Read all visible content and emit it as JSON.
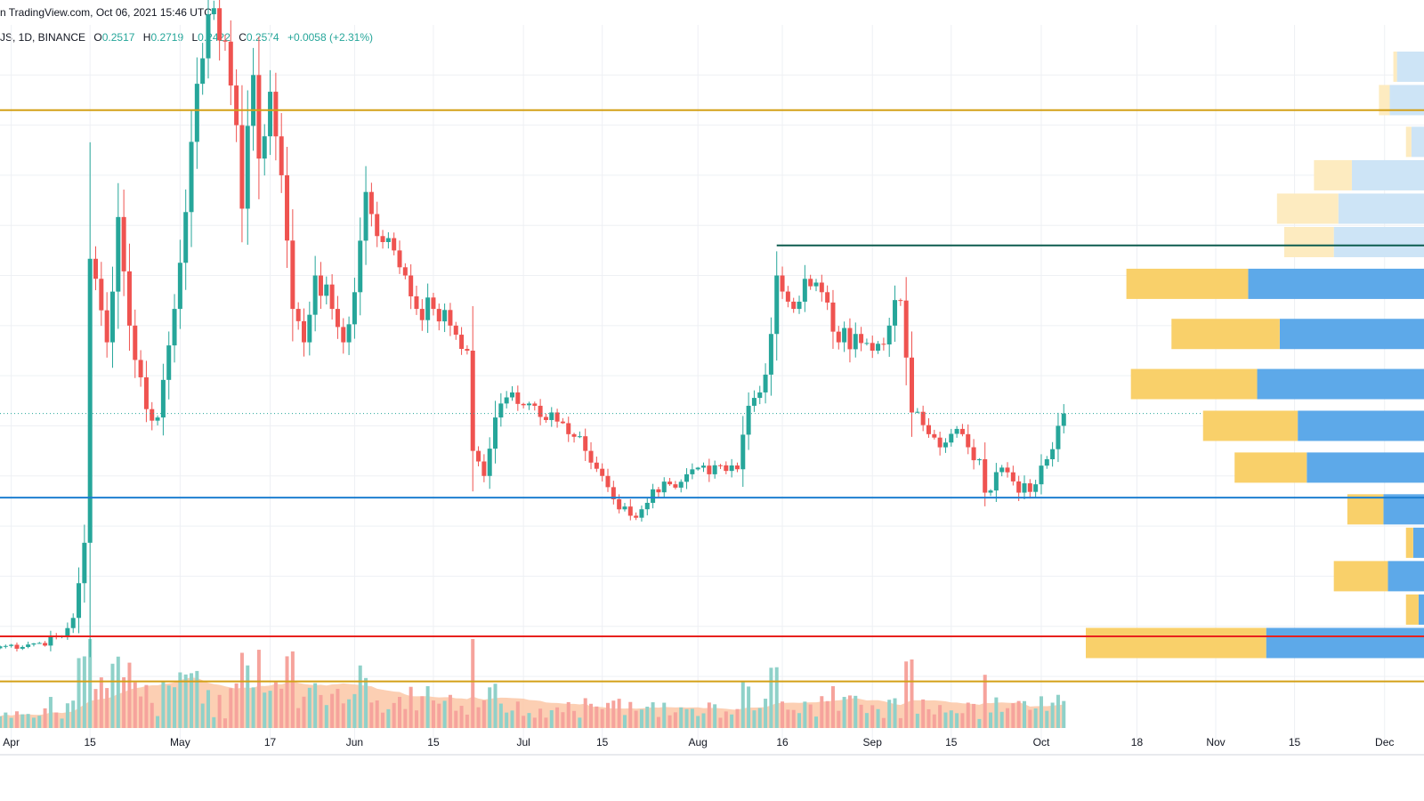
{
  "header": {
    "site": "n TradingView.com, Oct 06, 2021 15:46 UTC",
    "symbol": "JS, 1D, BINANCE",
    "open_label": "O",
    "open": "0.2517",
    "high_label": "H",
    "high": "0.2719",
    "low_label": "L",
    "low": "0.2422",
    "close_label": "C",
    "close": "0.2574",
    "change": "+0.0058 (+2.31%)"
  },
  "colors": {
    "up": "#26a69a",
    "down": "#ef5350",
    "volume_up": "#8fd1c9",
    "volume_down": "#f6a39c",
    "volume_ma": "#fbc7a6",
    "level_gold": "#d4a017",
    "level_blue": "#1e7fd0",
    "level_red": "#e8211e",
    "level_dark": "#0d5c4f",
    "vp_up": "#5da9e9",
    "vp_down": "#f9d06a",
    "vp_up_light": "#cde4f6",
    "vp_down_light": "#fdebc0",
    "grid": "#eef0f4"
  },
  "chart_data": {
    "type": "candlestick",
    "x_tick_labels": [
      "Apr",
      "15",
      "May",
      "17",
      "Jun",
      "15",
      "Jul",
      "15",
      "Aug",
      "16",
      "Sep",
      "15",
      "Oct",
      "18",
      "Nov",
      "15",
      "Dec"
    ],
    "x_tick_dates": [
      "2021-04-01",
      "2021-04-15",
      "2021-05-01",
      "2021-05-17",
      "2021-06-01",
      "2021-06-15",
      "2021-07-01",
      "2021-07-15",
      "2021-08-01",
      "2021-08-16",
      "2021-09-01",
      "2021-09-15",
      "2021-10-01",
      "2021-10-18",
      "2021-11-01",
      "2021-11-15",
      "2021-12-01"
    ],
    "x_range": [
      "2021-03-30",
      "2021-12-08"
    ],
    "y_range": [
      0.1,
      0.49
    ],
    "last_price": 0.2574,
    "levels": [
      {
        "price": 0.439,
        "color": "level_gold",
        "from": "2021-03-30"
      },
      {
        "price": 0.358,
        "color": "level_dark",
        "from": "2021-08-15"
      },
      {
        "price": 0.207,
        "color": "level_blue",
        "from": "2021-03-30"
      },
      {
        "price": 0.124,
        "color": "level_red",
        "from": "2021-03-30"
      },
      {
        "price": 0.097,
        "color": "level_gold",
        "from": "2021-03-30"
      }
    ],
    "ohlc_anchors": [
      [
        "2021-03-30",
        0.118
      ],
      [
        "2021-04-06",
        0.12
      ],
      [
        "2021-04-10",
        0.124
      ],
      [
        "2021-04-12",
        0.135
      ],
      [
        "2021-04-14",
        0.18
      ],
      [
        "2021-04-15",
        0.35
      ],
      [
        "2021-04-18",
        0.3
      ],
      [
        "2021-04-20",
        0.375
      ],
      [
        "2021-04-22",
        0.31
      ],
      [
        "2021-04-25",
        0.26
      ],
      [
        "2021-04-27",
        0.255
      ],
      [
        "2021-04-30",
        0.32
      ],
      [
        "2021-05-03",
        0.42
      ],
      [
        "2021-05-05",
        0.47
      ],
      [
        "2021-05-07",
        0.5
      ],
      [
        "2021-05-09",
        0.48
      ],
      [
        "2021-05-11",
        0.43
      ],
      [
        "2021-05-12",
        0.38
      ],
      [
        "2021-05-14",
        0.46
      ],
      [
        "2021-05-15",
        0.41
      ],
      [
        "2021-05-17",
        0.45
      ],
      [
        "2021-05-19",
        0.4
      ],
      [
        "2021-05-21",
        0.32
      ],
      [
        "2021-05-23",
        0.3
      ],
      [
        "2021-05-25",
        0.34
      ],
      [
        "2021-05-28",
        0.32
      ],
      [
        "2021-05-30",
        0.3
      ],
      [
        "2021-06-01",
        0.33
      ],
      [
        "2021-06-03",
        0.39
      ],
      [
        "2021-06-06",
        0.36
      ],
      [
        "2021-06-08",
        0.355
      ],
      [
        "2021-06-10",
        0.34
      ],
      [
        "2021-06-12",
        0.32
      ],
      [
        "2021-06-15",
        0.32
      ],
      [
        "2021-06-18",
        0.31
      ],
      [
        "2021-06-21",
        0.295
      ],
      [
        "2021-06-22",
        0.235
      ],
      [
        "2021-06-24",
        0.22
      ],
      [
        "2021-06-26",
        0.255
      ],
      [
        "2021-06-29",
        0.27
      ],
      [
        "2021-07-03",
        0.262
      ],
      [
        "2021-07-06",
        0.258
      ],
      [
        "2021-07-09",
        0.245
      ],
      [
        "2021-07-12",
        0.235
      ],
      [
        "2021-07-15",
        0.22
      ],
      [
        "2021-07-18",
        0.2
      ],
      [
        "2021-07-21",
        0.195
      ],
      [
        "2021-07-24",
        0.212
      ],
      [
        "2021-07-27",
        0.215
      ],
      [
        "2021-07-30",
        0.221
      ],
      [
        "2021-08-03",
        0.221
      ],
      [
        "2021-08-06",
        0.223
      ],
      [
        "2021-08-08",
        0.224
      ],
      [
        "2021-08-10",
        0.262
      ],
      [
        "2021-08-12",
        0.27
      ],
      [
        "2021-08-14",
        0.305
      ],
      [
        "2021-08-15",
        0.34
      ],
      [
        "2021-08-18",
        0.32
      ],
      [
        "2021-08-20",
        0.338
      ],
      [
        "2021-08-23",
        0.33
      ],
      [
        "2021-08-26",
        0.3
      ],
      [
        "2021-08-29",
        0.305
      ],
      [
        "2021-09-01",
        0.295
      ],
      [
        "2021-09-04",
        0.31
      ],
      [
        "2021-09-06",
        0.325
      ],
      [
        "2021-09-08",
        0.258
      ],
      [
        "2021-09-11",
        0.245
      ],
      [
        "2021-09-14",
        0.24
      ],
      [
        "2021-09-17",
        0.245
      ],
      [
        "2021-09-20",
        0.23
      ],
      [
        "2021-09-21",
        0.21
      ],
      [
        "2021-09-24",
        0.225
      ],
      [
        "2021-09-27",
        0.21
      ],
      [
        "2021-09-30",
        0.215
      ],
      [
        "2021-10-02",
        0.23
      ],
      [
        "2021-10-04",
        0.25
      ],
      [
        "2021-10-05",
        0.2574
      ]
    ],
    "volume_profile": [
      {
        "price": 0.465,
        "up": 4,
        "down": 30
      },
      {
        "price": 0.445,
        "up": 12,
        "down": 38
      },
      {
        "price": 0.42,
        "up": 6,
        "down": 14
      },
      {
        "price": 0.4,
        "up": 42,
        "down": 80
      },
      {
        "price": 0.38,
        "up": 68,
        "down": 95
      },
      {
        "price": 0.36,
        "up": 55,
        "down": 100
      },
      {
        "price": 0.335,
        "up": 135,
        "down": 195
      },
      {
        "price": 0.305,
        "up": 120,
        "down": 160
      },
      {
        "price": 0.275,
        "up": 140,
        "down": 185
      },
      {
        "price": 0.25,
        "up": 105,
        "down": 140
      },
      {
        "price": 0.225,
        "up": 80,
        "down": 130
      },
      {
        "price": 0.2,
        "up": 40,
        "down": 45
      },
      {
        "price": 0.18,
        "up": 8,
        "down": 12
      },
      {
        "price": 0.16,
        "up": 60,
        "down": 40
      },
      {
        "price": 0.14,
        "up": 14,
        "down": 6
      },
      {
        "price": 0.12,
        "up": 200,
        "down": 175
      }
    ],
    "volume_profile_dim_above": 0.345
  }
}
